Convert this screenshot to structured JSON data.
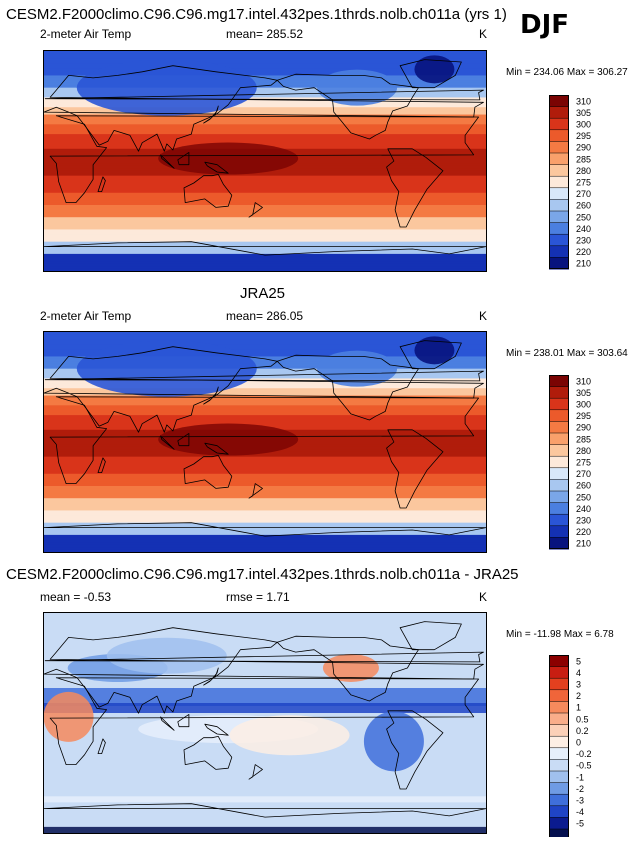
{
  "season": "DJF",
  "units": "K",
  "panels": [
    {
      "title": "CESM2.F2000climo.C96.C96.mg17.intel.432pes.1thrds.nolb.ch011a (yrs 1)",
      "variable": "2-meter Air Temp",
      "stat1": "mean= 285.52",
      "stat2": "",
      "units": "K",
      "minmax": "Min = 234.06 Max = 306.27",
      "kind": "abs"
    },
    {
      "title": "JRA25",
      "variable": "2-meter Air Temp",
      "stat1": "mean= 286.05",
      "stat2": "",
      "units": "K",
      "minmax": "Min = 238.01 Max = 303.64",
      "kind": "abs"
    },
    {
      "title": "CESM2.F2000climo.C96.C96.mg17.intel.432pes.1thrds.nolb.ch011a - JRA25",
      "variable": "",
      "stat1": "mean =  -0.53",
      "stat2": "rmse =   1.71",
      "units": "K",
      "minmax": "Min = -11.98 Max =   6.78",
      "kind": "diff"
    }
  ],
  "chart_data": [
    {
      "type": "heatmap",
      "title": "CESM2.F2000climo.C96.C96.mg17.intel.432pes.1thrds.nolb.ch011a (yrs 1)",
      "variable": "2-meter Air Temp",
      "mean": 285.52,
      "min": 234.06,
      "max": 306.27,
      "units": "K",
      "colorbar_levels": [
        "310",
        "305",
        "300",
        "295",
        "290",
        "285",
        "280",
        "275",
        "270",
        "260",
        "250",
        "240",
        "230",
        "220",
        "210"
      ],
      "colors": [
        "#7a0403",
        "#b01c0b",
        "#d9341a",
        "#ec5a2b",
        "#f47a43",
        "#f9a06b",
        "#fbc79e",
        "#fde9da",
        "#d8e8fa",
        "#a8c7f0",
        "#7aa6e8",
        "#4b7fe0",
        "#2a55d6",
        "#1431b4",
        "#07137e"
      ]
    },
    {
      "type": "heatmap",
      "title": "JRA25",
      "variable": "2-meter Air Temp",
      "mean": 286.05,
      "min": 238.01,
      "max": 303.64,
      "units": "K",
      "colorbar_levels": [
        "310",
        "305",
        "300",
        "295",
        "290",
        "285",
        "280",
        "275",
        "270",
        "260",
        "250",
        "240",
        "230",
        "220",
        "210"
      ],
      "colors": [
        "#7a0403",
        "#b01c0b",
        "#d9341a",
        "#ec5a2b",
        "#f47a43",
        "#f9a06b",
        "#fbc79e",
        "#fde9da",
        "#d8e8fa",
        "#a8c7f0",
        "#7aa6e8",
        "#4b7fe0",
        "#2a55d6",
        "#1431b4",
        "#07137e"
      ]
    },
    {
      "type": "heatmap",
      "title": "CESM2.F2000climo.C96.C96.mg17.intel.432pes.1thrds.nolb.ch011a - JRA25",
      "mean": -0.53,
      "rmse": 1.71,
      "min": -11.98,
      "max": 6.78,
      "units": "K",
      "colorbar_levels": [
        "5",
        "4",
        "3",
        "2",
        "1",
        "0.5",
        "0.2",
        "0",
        "-0.2",
        "-0.5",
        "-1",
        "-2",
        "-3",
        "-4",
        "-5"
      ],
      "colors": [
        "#8b0000",
        "#c81e12",
        "#e3401f",
        "#f0653a",
        "#f68a5d",
        "#f9ad8a",
        "#fbd0b8",
        "#fdeee4",
        "#e6effb",
        "#c9dcf5",
        "#a0c0ee",
        "#6f9be4",
        "#3f6fdb",
        "#1f44c6",
        "#0b1b8f",
        "#04104f"
      ]
    }
  ]
}
